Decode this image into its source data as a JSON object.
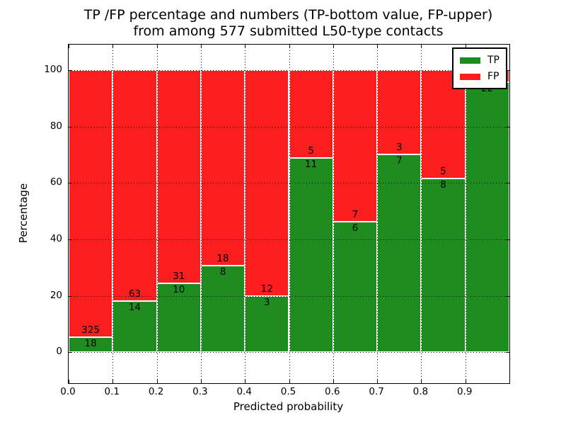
{
  "figure": {
    "title_line1": "TP /FP percentage and numbers (TP-bottom value, FP-upper)",
    "title_line2": "from among 577 submitted L50-type contacts",
    "xlabel": "Predicted probability",
    "ylabel": "Percentage"
  },
  "legend": {
    "position": "upper right",
    "entries": [
      {
        "label": "TP",
        "color": "#1f8c1f"
      },
      {
        "label": "FP",
        "color": "#fa1e1e"
      }
    ]
  },
  "colors": {
    "tp_green": "#1f8c1f",
    "fp_red": "#fa1e1e",
    "bar_edge": "#ffffff",
    "grid": "#000000",
    "background": "#ffffff",
    "text": "#000000"
  },
  "chart_data": {
    "type": "bar",
    "stacked": true,
    "normalized_to": 100,
    "title": "TP /FP percentage and numbers (TP-bottom value, FP-upper) from among 577 submitted L50-type contacts",
    "xlabel": "Predicted probability",
    "ylabel": "Percentage",
    "xlim": [
      0.0,
      1.0
    ],
    "ylim": [
      -11,
      109
    ],
    "x_tick_labels": [
      "0.0",
      "0.1",
      "0.2",
      "0.3",
      "0.4",
      "0.5",
      "0.6",
      "0.7",
      "0.8",
      "0.9"
    ],
    "y_tick_values": [
      0,
      20,
      40,
      60,
      80,
      100
    ],
    "grid": "dotted",
    "legend_position": "upper right",
    "series": [
      {
        "name": "TP",
        "color": "#1f8c1f"
      },
      {
        "name": "FP",
        "color": "#fa1e1e"
      }
    ],
    "bins": [
      {
        "x0": 0.0,
        "x1": 0.1,
        "tp_count": 18,
        "fp_count": 325,
        "tp_percent": 5.25,
        "fp_percent": 94.75,
        "tp_label": "18",
        "fp_label": "325"
      },
      {
        "x0": 0.1,
        "x1": 0.2,
        "tp_count": 14,
        "fp_count": 63,
        "tp_percent": 18.18,
        "fp_percent": 81.82,
        "tp_label": "14",
        "fp_label": "63"
      },
      {
        "x0": 0.2,
        "x1": 0.3,
        "tp_count": 10,
        "fp_count": 31,
        "tp_percent": 24.39,
        "fp_percent": 75.61,
        "tp_label": "10",
        "fp_label": "31"
      },
      {
        "x0": 0.3,
        "x1": 0.4,
        "tp_count": 8,
        "fp_count": 18,
        "tp_percent": 30.77,
        "fp_percent": 69.23,
        "tp_label": "8",
        "fp_label": "18"
      },
      {
        "x0": 0.4,
        "x1": 0.5,
        "tp_count": 3,
        "fp_count": 12,
        "tp_percent": 20.0,
        "fp_percent": 80.0,
        "tp_label": "3",
        "fp_label": "12"
      },
      {
        "x0": 0.5,
        "x1": 0.6,
        "tp_count": 11,
        "fp_count": 5,
        "tp_percent": 68.75,
        "fp_percent": 31.25,
        "tp_label": "11",
        "fp_label": "5"
      },
      {
        "x0": 0.6,
        "x1": 0.7,
        "tp_count": 6,
        "fp_count": 7,
        "tp_percent": 46.15,
        "fp_percent": 53.85,
        "tp_label": "6",
        "fp_label": "7"
      },
      {
        "x0": 0.7,
        "x1": 0.8,
        "tp_count": 7,
        "fp_count": 3,
        "tp_percent": 70.0,
        "fp_percent": 30.0,
        "tp_label": "7",
        "fp_label": "3"
      },
      {
        "x0": 0.8,
        "x1": 0.9,
        "tp_count": 8,
        "fp_count": 5,
        "tp_percent": 61.54,
        "fp_percent": 38.46,
        "tp_label": "8",
        "fp_label": "5"
      },
      {
        "x0": 0.9,
        "x1": 1.0,
        "tp_count": 22,
        "fp_count": null,
        "tp_percent": 95.65,
        "fp_percent": 4.35,
        "tp_label": "22",
        "fp_label": ""
      }
    ]
  }
}
